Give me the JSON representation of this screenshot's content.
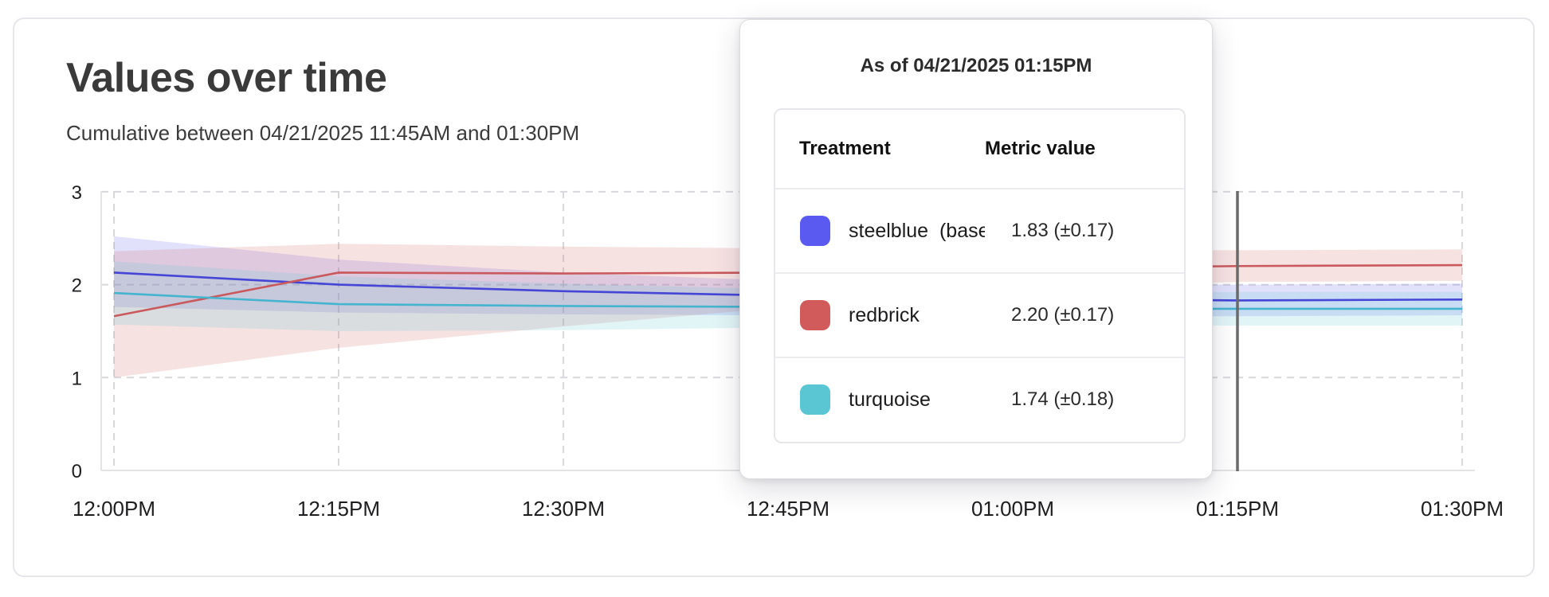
{
  "card": {
    "title": "Values over time",
    "subtitle": "Cumulative between 04/21/2025 11:45AM and 01:30PM"
  },
  "tooltip": {
    "title": "As of 04/21/2025 01:15PM",
    "columns": [
      "Treatment",
      "Metric value"
    ],
    "rows": [
      {
        "name": "steelblue  (baseli",
        "value": "1.83 (±0.17)",
        "swatch": "#5a5af0"
      },
      {
        "name": "redbrick",
        "value": "2.20 (±0.17)",
        "swatch": "#d15b5b"
      },
      {
        "name": "turquoise",
        "value": "1.74 (±0.18)",
        "swatch": "#5ac6d4"
      }
    ]
  },
  "chart_data": {
    "type": "line",
    "title": "Values over time",
    "subtitle": "Cumulative between 04/21/2025 11:45AM and 01:30PM",
    "x_ticks": [
      "12:00PM",
      "12:15PM",
      "12:30PM",
      "12:45PM",
      "01:00PM",
      "01:15PM",
      "01:30PM"
    ],
    "y_ticks": [
      0,
      1,
      2,
      3
    ],
    "ylim": [
      0,
      3
    ],
    "grid": "dashed",
    "legend_position": "tooltip",
    "hover": {
      "label": "01:15PM",
      "index": 5,
      "as_of": "As of 04/21/2025 01:15PM"
    },
    "series": [
      {
        "name": "steelblue (baseline)",
        "line_color": "#4545d6",
        "band_color": "#5a5af0",
        "values": [
          2.13,
          2.0,
          1.93,
          1.88,
          1.85,
          1.83,
          1.84
        ],
        "upper": [
          2.52,
          2.27,
          2.13,
          2.04,
          2.0,
          2.0,
          2.01
        ],
        "lower": [
          1.76,
          1.7,
          1.68,
          1.67,
          1.66,
          1.66,
          1.67
        ]
      },
      {
        "name": "redbrick",
        "line_color": "#c9595c",
        "band_color": "#d06060",
        "values": [
          1.66,
          2.13,
          2.12,
          2.13,
          2.17,
          2.2,
          2.21
        ],
        "upper": [
          2.36,
          2.44,
          2.41,
          2.39,
          2.38,
          2.37,
          2.38
        ],
        "lower": [
          1.0,
          1.32,
          1.55,
          1.76,
          1.94,
          2.03,
          2.04
        ]
      },
      {
        "name": "turquoise",
        "line_color": "#45b4cf",
        "band_color": "#5ac6d4",
        "values": [
          1.91,
          1.79,
          1.77,
          1.76,
          1.74,
          1.74,
          1.74
        ],
        "upper": [
          2.25,
          2.09,
          2.01,
          1.95,
          1.93,
          1.92,
          1.92
        ],
        "lower": [
          1.57,
          1.5,
          1.51,
          1.54,
          1.55,
          1.56,
          1.56
        ]
      }
    ]
  },
  "colors": {
    "grid": "#d8d8dc",
    "axis": "#e4e4e6",
    "hover_line": "#6b6b6b",
    "tick_label": "#1e1e20"
  }
}
